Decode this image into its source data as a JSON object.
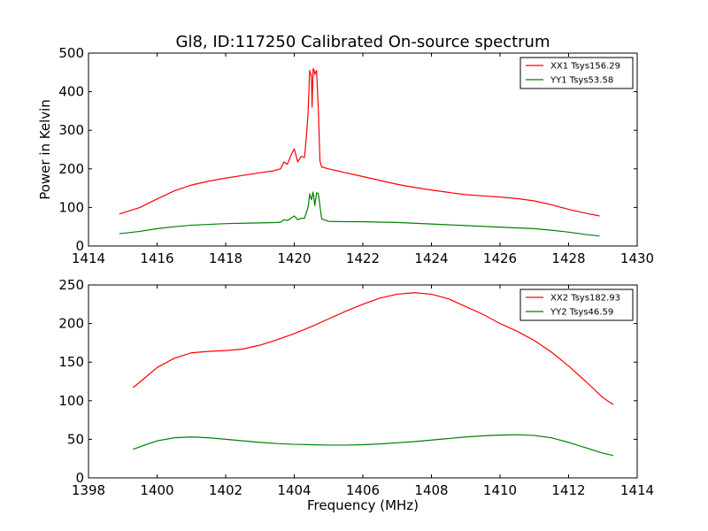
{
  "chart_data": [
    {
      "type": "line",
      "title": "Gl8, ID:117250 Calibrated On-source spectrum",
      "xlabel": "",
      "ylabel": "Power in Kelvin",
      "xlim": [
        1414,
        1430
      ],
      "ylim": [
        0,
        500
      ],
      "xticks": [
        "1414",
        "1416",
        "1418",
        "1420",
        "1422",
        "1424",
        "1426",
        "1428",
        "1430"
      ],
      "yticks": [
        "0",
        "100",
        "200",
        "300",
        "400",
        "500"
      ],
      "legend_position": "top-right",
      "grid": false,
      "series": [
        {
          "name": "XX1 Tsys156.29",
          "color": "#ff0000",
          "x": [
            1414.9,
            1415.5,
            1416,
            1416.5,
            1417,
            1417.5,
            1418,
            1418.5,
            1419,
            1419.4,
            1419.6,
            1419.7,
            1419.8,
            1419.9,
            1420.0,
            1420.1,
            1420.2,
            1420.3,
            1420.35,
            1420.4,
            1420.45,
            1420.5,
            1420.52,
            1420.55,
            1420.58,
            1420.6,
            1420.65,
            1420.7,
            1420.75,
            1420.8,
            1421.0,
            1421.5,
            1422,
            1422.5,
            1423,
            1423.5,
            1424,
            1424.5,
            1425,
            1425.5,
            1426,
            1426.5,
            1427,
            1427.5,
            1428,
            1428.5,
            1428.9
          ],
          "y": [
            83,
            100,
            122,
            143,
            158,
            168,
            176,
            183,
            190,
            195,
            200,
            218,
            212,
            235,
            252,
            218,
            232,
            230,
            280,
            340,
            455,
            440,
            360,
            460,
            455,
            445,
            455,
            360,
            220,
            205,
            200,
            190,
            180,
            170,
            160,
            152,
            145,
            139,
            133,
            130,
            127,
            123,
            117,
            107,
            95,
            85,
            78
          ]
        },
        {
          "name": "YY1 Tsys53.58",
          "color": "#008000",
          "x": [
            1414.9,
            1415.5,
            1416,
            1416.5,
            1417,
            1417.5,
            1418,
            1418.5,
            1419,
            1419.5,
            1419.6,
            1419.7,
            1419.8,
            1419.9,
            1420.0,
            1420.1,
            1420.2,
            1420.3,
            1420.4,
            1420.45,
            1420.5,
            1420.55,
            1420.6,
            1420.65,
            1420.7,
            1420.8,
            1421.0,
            1421.5,
            1422,
            1422.5,
            1423,
            1423.5,
            1424,
            1424.5,
            1425,
            1425.5,
            1426,
            1426.5,
            1427,
            1427.5,
            1428,
            1428.5,
            1428.9
          ],
          "y": [
            32,
            38,
            45,
            50,
            54,
            56,
            58,
            59,
            60,
            61,
            62,
            68,
            66,
            72,
            78,
            68,
            72,
            72,
            100,
            135,
            120,
            140,
            105,
            138,
            136,
            70,
            64,
            63,
            63,
            62,
            61,
            59,
            57,
            55,
            53,
            51,
            49,
            47,
            45,
            41,
            36,
            30,
            26
          ]
        }
      ]
    },
    {
      "type": "line",
      "title": "",
      "xlabel": "Frequency (MHz)",
      "ylabel": "",
      "xlim": [
        1398,
        1414
      ],
      "ylim": [
        0,
        250
      ],
      "xticks": [
        "1398",
        "1400",
        "1402",
        "1404",
        "1406",
        "1408",
        "1410",
        "1412",
        "1414"
      ],
      "yticks": [
        "0",
        "50",
        "100",
        "150",
        "200",
        "250"
      ],
      "legend_position": "top-right",
      "grid": false,
      "series": [
        {
          "name": "XX2 Tsys182.93",
          "color": "#ff0000",
          "x": [
            1399.3,
            1399.6,
            1400,
            1400.5,
            1401,
            1401.5,
            1402,
            1402.5,
            1403,
            1403.5,
            1404,
            1404.5,
            1405,
            1405.5,
            1406,
            1406.5,
            1407,
            1407.5,
            1408,
            1408.5,
            1409,
            1409.5,
            1410,
            1410.5,
            1411,
            1411.5,
            1412,
            1412.5,
            1413,
            1413.3
          ],
          "y": [
            117,
            128,
            143,
            155,
            162,
            164,
            165,
            167,
            172,
            179,
            187,
            196,
            206,
            216,
            225,
            233,
            238,
            240,
            238,
            232,
            222,
            212,
            200,
            190,
            178,
            163,
            145,
            125,
            104,
            95
          ]
        },
        {
          "name": "YY2 Tsys46.59",
          "color": "#008000",
          "x": [
            1399.3,
            1399.6,
            1400,
            1400.5,
            1401,
            1401.5,
            1402,
            1402.5,
            1403,
            1403.5,
            1404,
            1404.5,
            1405,
            1405.5,
            1406,
            1406.5,
            1407,
            1407.5,
            1408,
            1408.5,
            1409,
            1409.5,
            1410,
            1410.5,
            1411,
            1411.5,
            1412,
            1412.5,
            1413,
            1413.3
          ],
          "y": [
            37,
            42,
            48,
            52,
            53,
            52,
            50,
            48,
            46,
            44.5,
            43.5,
            43,
            42.5,
            42.5,
            43,
            44,
            45.5,
            47,
            49,
            51,
            53,
            54.5,
            55.5,
            56,
            55,
            52,
            46,
            39,
            32,
            29
          ]
        }
      ]
    }
  ]
}
